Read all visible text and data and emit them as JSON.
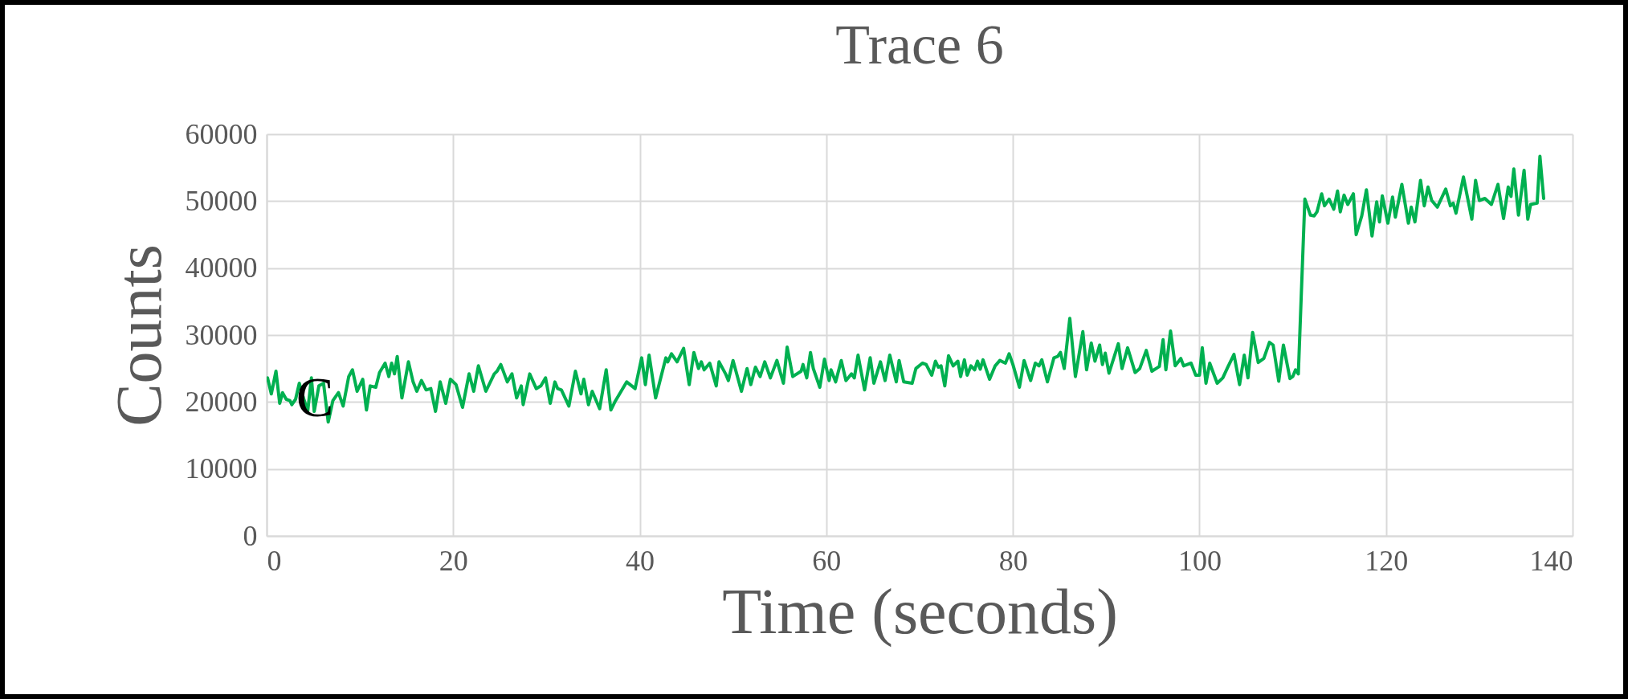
{
  "chart_data": {
    "type": "line",
    "title": "Trace 6",
    "xlabel": "Time (seconds)",
    "ylabel": "Counts",
    "annotations": [
      "C"
    ],
    "xlim": [
      0,
      140
    ],
    "xticks": [
      0,
      20,
      40,
      60,
      80,
      100,
      120,
      140
    ],
    "ylim": [
      0,
      60000
    ],
    "yticks": [
      0,
      10000,
      20000,
      30000,
      40000,
      50000,
      60000
    ],
    "grid": true,
    "marker": "none",
    "line_style": "solid",
    "x": [
      0.1,
      0.5,
      1.0,
      1.4,
      1.7,
      2.1,
      2.5,
      2.7,
      3.1,
      3.5,
      3.9,
      4.4,
      4.8,
      5.1,
      5.6,
      6.1,
      6.6,
      7.1,
      7.7,
      8.2,
      8.8,
      9.2,
      9.7,
      10.3,
      10.7,
      11.1,
      11.7,
      12.1,
      12.7,
      13.1,
      13.4,
      13.7,
      14.0,
      14.5,
      15.2,
      15.7,
      16.1,
      16.6,
      17.1,
      17.6,
      18.1,
      18.6,
      19.2,
      19.7,
      20.3,
      21.0,
      21.7,
      22.2,
      22.7,
      23.5,
      24.4,
      24.7,
      25.1,
      25.8,
      26.3,
      26.8,
      27.3,
      27.5,
      28.2,
      28.9,
      29.4,
      29.9,
      30.4,
      30.9,
      31.2,
      31.6,
      32.4,
      33.1,
      33.7,
      34.0,
      34.5,
      34.9,
      35.7,
      36.4,
      36.9,
      37.4,
      38.6,
      39.5,
      40.2,
      40.6,
      41.0,
      41.7,
      42.8,
      43.0,
      43.4,
      44.0,
      44.7,
      45.3,
      45.8,
      46.3,
      46.6,
      46.9,
      47.5,
      48.2,
      48.5,
      49.2,
      49.5,
      50.0,
      50.9,
      51.5,
      51.9,
      52.4,
      52.9,
      53.4,
      54.0,
      54.7,
      55.4,
      55.8,
      56.4,
      57.3,
      57.5,
      57.9,
      58.3,
      58.6,
      59.3,
      59.8,
      60.3,
      60.5,
      61.0,
      61.6,
      62.1,
      62.7,
      63.0,
      63.4,
      64.1,
      64.7,
      65.1,
      65.8,
      66.3,
      66.8,
      67.5,
      67.8,
      68.3,
      69.2,
      69.6,
      70.3,
      70.7,
      71.3,
      71.7,
      72.0,
      72.3,
      72.7,
      73.1,
      73.6,
      74.1,
      74.4,
      74.8,
      75.1,
      75.5,
      75.9,
      76.2,
      76.5,
      76.8,
      77.5,
      78.1,
      78.6,
      79.2,
      79.6,
      80.0,
      80.7,
      81.2,
      81.9,
      82.4,
      82.8,
      83.1,
      83.7,
      84.4,
      84.8,
      85.1,
      85.5,
      86.1,
      86.7,
      87.5,
      87.9,
      88.4,
      88.8,
      89.3,
      89.6,
      89.9,
      90.3,
      91.3,
      91.7,
      92.3,
      93.1,
      93.6,
      94.3,
      94.9,
      95.7,
      96.1,
      96.4,
      96.9,
      97.4,
      98.0,
      98.3,
      98.7,
      99.1,
      99.6,
      100.0,
      100.3,
      100.7,
      101.1,
      101.9,
      102.5,
      103.0,
      103.7,
      104.3,
      104.8,
      105.2,
      105.7,
      106.3,
      106.9,
      107.5,
      107.9,
      108.5,
      109.0,
      109.7,
      110.0,
      110.3,
      110.6,
      111.3,
      111.9,
      112.3,
      112.6,
      113.1,
      113.4,
      113.9,
      114.4,
      114.8,
      115.1,
      115.5,
      115.9,
      116.5,
      116.8,
      117.4,
      117.9,
      118.5,
      119.0,
      119.3,
      119.6,
      120.2,
      120.7,
      121.0,
      121.7,
      122.4,
      122.7,
      123.1,
      123.7,
      124.1,
      124.5,
      124.9,
      125.5,
      126.4,
      126.9,
      127.2,
      127.5,
      128.3,
      129.2,
      129.6,
      130.0,
      130.6,
      131.3,
      132.0,
      132.6,
      133.1,
      133.4,
      133.7,
      134.2,
      134.8,
      135.2,
      135.5,
      136.2,
      136.5,
      136.9
    ],
    "series": [
      {
        "color": "#00b050",
        "values": [
          23600,
          21200,
          24600,
          19800,
          21400,
          20400,
          20200,
          19600,
          20400,
          22800,
          20800,
          18600,
          23600,
          18600,
          22400,
          22800,
          17000,
          20200,
          21400,
          19400,
          23800,
          24800,
          21600,
          23400,
          18800,
          22400,
          22200,
          24400,
          25800,
          23800,
          25800,
          24200,
          26800,
          20600,
          26000,
          23000,
          21600,
          23200,
          21800,
          22000,
          18600,
          23000,
          19800,
          23400,
          22600,
          19200,
          24200,
          21600,
          25400,
          21600,
          24200,
          24600,
          25600,
          23000,
          24200,
          20600,
          22400,
          19600,
          24200,
          22000,
          22400,
          23600,
          19800,
          23000,
          22000,
          21800,
          19400,
          24600,
          21200,
          23400,
          19600,
          21600,
          19000,
          24800,
          18800,
          20200,
          23000,
          22000,
          26600,
          22600,
          27000,
          20600,
          26600,
          26000,
          27200,
          26000,
          28000,
          22600,
          27400,
          25000,
          26000,
          24800,
          25800,
          22400,
          26000,
          24200,
          23200,
          26200,
          21600,
          25000,
          22600,
          25200,
          23800,
          26000,
          23600,
          26200,
          22800,
          28200,
          23800,
          24600,
          25600,
          23600,
          27400,
          25000,
          22200,
          26400,
          23200,
          24800,
          23000,
          26200,
          23200,
          24200,
          23600,
          27000,
          21800,
          26600,
          22800,
          26000,
          23200,
          27000,
          23000,
          26200,
          23000,
          22800,
          25000,
          25800,
          25600,
          24000,
          26100,
          25200,
          25400,
          22400,
          26900,
          25400,
          26100,
          23800,
          26300,
          24000,
          25400,
          24800,
          26100,
          24900,
          26300,
          23400,
          25400,
          26200,
          25800,
          27200,
          25600,
          22200,
          26200,
          23200,
          25800,
          25400,
          26300,
          23000,
          26600,
          26800,
          27400,
          25000,
          32500,
          23800,
          30500,
          24800,
          28800,
          26100,
          28500,
          25600,
          27300,
          24300,
          28700,
          25000,
          28100,
          24400,
          25000,
          27700,
          24600,
          25300,
          29300,
          24800,
          30600,
          25400,
          26500,
          25400,
          25600,
          25800,
          24000,
          24000,
          28100,
          22800,
          25800,
          22800,
          23600,
          25100,
          27100,
          22600,
          27000,
          23600,
          30400,
          25900,
          26500,
          28900,
          28500,
          23100,
          28500,
          23500,
          23800,
          24800,
          24200,
          50300,
          47900,
          47800,
          48400,
          51100,
          49300,
          50300,
          48800,
          51500,
          48400,
          50900,
          49500,
          51100,
          45000,
          47800,
          51700,
          44800,
          49900,
          46900,
          50800,
          46700,
          50600,
          47600,
          52500,
          46700,
          49100,
          46900,
          53100,
          49300,
          52100,
          50100,
          49100,
          51800,
          49300,
          49700,
          48200,
          53600,
          47300,
          53100,
          50100,
          50400,
          49500,
          52500,
          47400,
          52100,
          50700,
          54800,
          47900,
          54600,
          47300,
          49500,
          49700,
          56700,
          50400
        ]
      }
    ]
  }
}
